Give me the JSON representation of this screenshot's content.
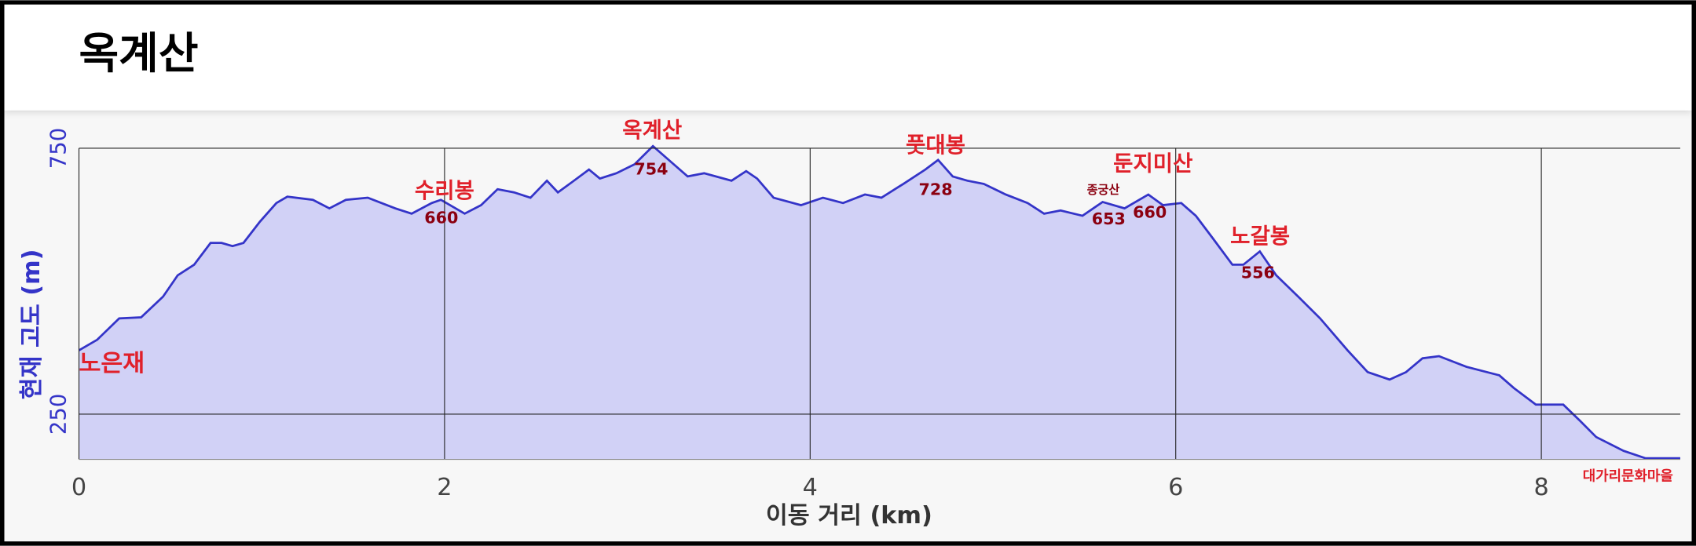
{
  "header": {
    "title": "옥계산"
  },
  "chart_data": {
    "type": "area",
    "xlabel": "이동 거리 (km)",
    "ylabel": "현재 고도 (m)",
    "xlim": [
      0,
      8.76
    ],
    "ylim": [
      165,
      800
    ],
    "xticks": [
      0,
      2,
      4,
      6,
      8
    ],
    "yticks": [
      250,
      750
    ],
    "grid": true,
    "series": [
      {
        "color": "#3434c8",
        "fill": "#d1d1f6",
        "x": [
          0,
          0.1,
          0.22,
          0.34,
          0.46,
          0.54,
          0.63,
          0.72,
          0.78,
          0.84,
          0.9,
          0.99,
          1.08,
          1.14,
          1.28,
          1.37,
          1.46,
          1.58,
          1.73,
          1.82,
          1.93,
          1.98,
          2.11,
          2.2,
          2.29,
          2.38,
          2.47,
          2.56,
          2.62,
          2.7,
          2.79,
          2.85,
          2.94,
          3.04,
          3.14,
          3.24,
          3.33,
          3.42,
          3.57,
          3.65,
          3.71,
          3.8,
          3.95,
          4.07,
          4.18,
          4.3,
          4.39,
          4.51,
          4.63,
          4.7,
          4.78,
          4.86,
          4.95,
          5.07,
          5.19,
          5.28,
          5.37,
          5.49,
          5.6,
          5.72,
          5.85,
          5.93,
          6.03,
          6.11,
          6.2,
          6.31,
          6.37,
          6.46,
          6.55,
          6.67,
          6.79,
          6.94,
          7.05,
          7.17,
          7.26,
          7.35,
          7.44,
          7.59,
          7.77,
          7.85,
          7.97,
          8.12,
          8.21,
          8.3,
          8.45,
          8.57,
          8.76
        ],
        "values": [
          370,
          390,
          430,
          432,
          471,
          511,
          531,
          572,
          572,
          566,
          572,
          612,
          647,
          659,
          653,
          637,
          653,
          657,
          637,
          627,
          647,
          653,
          627,
          643,
          673,
          667,
          657,
          689,
          667,
          687,
          710,
          693,
          703,
          720,
          754,
          724,
          697,
          703,
          689,
          707,
          693,
          657,
          643,
          657,
          647,
          663,
          657,
          683,
          710,
          728,
          697,
          689,
          683,
          663,
          647,
          627,
          633,
          623,
          649,
          637,
          663,
          643,
          647,
          623,
          582,
          531,
          531,
          556,
          511,
          471,
          430,
          370,
          329,
          315,
          329,
          355,
          359,
          339,
          323,
          299,
          268,
          268,
          238,
          207,
          181,
          167,
          167
        ]
      }
    ],
    "annotations": [
      {
        "label": "노은재"
      },
      {
        "label": "수리봉",
        "elevation": 660
      },
      {
        "label": "옥계산",
        "elevation": 754
      },
      {
        "label": "풋대봉",
        "elevation": 728
      },
      {
        "label": "종궁산",
        "elevation": 653
      },
      {
        "label": "둔지미산",
        "elevation": 660
      },
      {
        "label": "노갈봉",
        "elevation": 556
      },
      {
        "label": "대가리문화마을"
      }
    ]
  }
}
